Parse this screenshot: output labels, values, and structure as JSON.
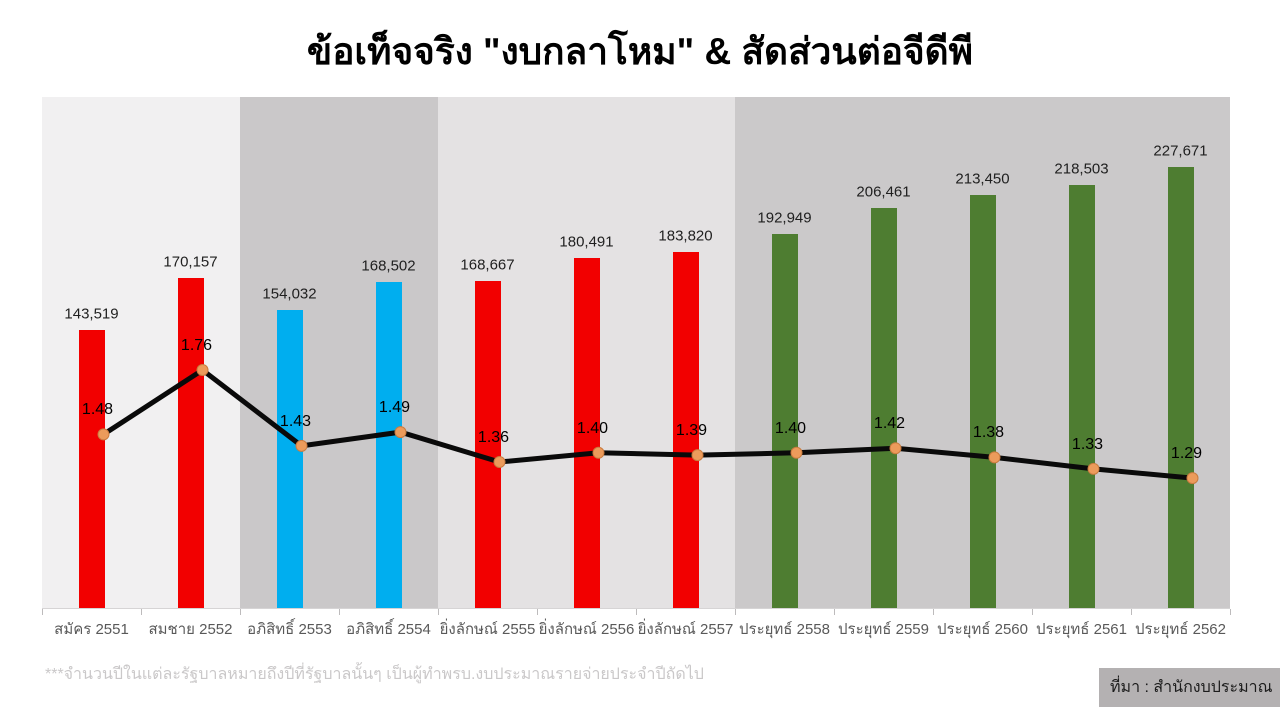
{
  "title": "ข้อเท็จจริง \"งบกลาโหม\" & สัดส่วนต่อจีดีพี",
  "footnote": "***จำนวนปีในแต่ละรัฐบาลหมายถึงปีที่รัฐบาลนั้นๆ เป็นผู้ทำพรบ.งบประมาณรายจ่ายประจำปีถัดไป",
  "source_label": "ที่มา : สำนักงบประมาณ",
  "colors": {
    "bar_red": "#f20000",
    "bar_blue": "#00aeef",
    "bar_green": "#4e7d31",
    "line_black": "#0a0a0a",
    "marker_orange": "#ec9b5b",
    "marker_border": "#c97b3f",
    "band_light": "#f1f0f1",
    "band_dark_1": "#cac8c9",
    "band_mid": "#e4e2e3",
    "band_dark_2": "#cbc9ca",
    "source_box_bg": "#b4b1b2",
    "footnote_gray": "#cac8c9",
    "x_label_gray": "#595959"
  },
  "chart_data": {
    "type": "bar",
    "subtype": "combo bar + line, dual implicit axes, no visible y-axis ticks, no gridlines, no legend",
    "title": "ข้อเท็จจริง \"งบกลาโหม\" & สัดส่วนต่อจีดีพี",
    "xlabel": "",
    "ylabel": "",
    "grid": false,
    "legend": false,
    "categories": [
      "สมัคร 2551",
      "สมชาย 2552",
      "อภิสิทธิ์ 2553",
      "อภิสิทธิ์ 2554",
      "ยิ่งลักษณ์ 2555",
      "ยิ่งลักษณ์ 2556",
      "ยิ่งลักษณ์ 2557",
      "ประยุทธ์ 2558",
      "ประยุทธ์ 2559",
      "ประยุทธ์ 2560",
      "ประยุทธ์ 2561",
      "ประยุทธ์ 2562"
    ],
    "series": [
      {
        "type": "bar",
        "values": [
          143519,
          170157,
          154032,
          168502,
          168667,
          180491,
          183820,
          192949,
          206461,
          213450,
          218503,
          227671
        ],
        "value_labels": [
          "143,519",
          "170,157",
          "154,032",
          "168,502",
          "168,667",
          "180,491",
          "183,820",
          "192,949",
          "206,461",
          "213,450",
          "218,503",
          "227,671"
        ],
        "point_colors": [
          "#f20000",
          "#f20000",
          "#00aeef",
          "#00aeef",
          "#f20000",
          "#f20000",
          "#f20000",
          "#4e7d31",
          "#4e7d31",
          "#4e7d31",
          "#4e7d31",
          "#4e7d31"
        ],
        "ylim": [
          0,
          235000
        ]
      },
      {
        "type": "line",
        "values": [
          1.48,
          1.76,
          1.43,
          1.49,
          1.36,
          1.4,
          1.39,
          1.4,
          1.42,
          1.38,
          1.33,
          1.29
        ],
        "value_labels": [
          "1.48",
          "1.76",
          "1.43",
          "1.49",
          "1.36",
          "1.40",
          "1.39",
          "1.40",
          "1.42",
          "1.38",
          "1.33",
          "1.29"
        ],
        "color": "#0a0a0a",
        "marker_color": "#ec9b5b",
        "ylim": [
          0.7,
          2.9
        ]
      }
    ],
    "background_bands": [
      {
        "start_category": 0,
        "end_category": 2,
        "color": "#f1f0f1"
      },
      {
        "start_category": 2,
        "end_category": 4,
        "color": "#cac8c9"
      },
      {
        "start_category": 4,
        "end_category": 7,
        "color": "#e4e2e3"
      },
      {
        "start_category": 7,
        "end_category": 12,
        "color": "#cbc9ca"
      }
    ]
  }
}
